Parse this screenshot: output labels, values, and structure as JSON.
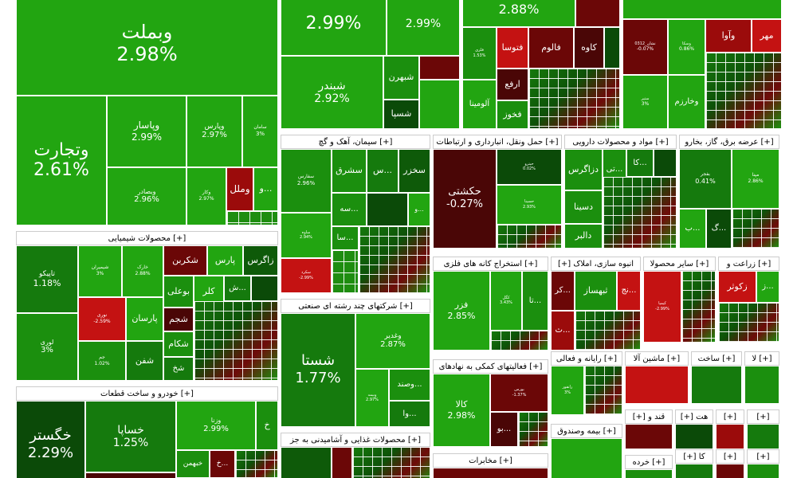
{
  "colors": {
    "green_light": "#22a511",
    "green_mid": "#1b8f0e",
    "green_dark": "#0b4a08",
    "red_bright": "#c41212",
    "red_dark": "#6b0707"
  },
  "expand_icon": "[+]",
  "sectors": [
    {
      "key": "chem",
      "label": "محصولات شیمیایی"
    },
    {
      "key": "auto",
      "label": "خودرو و ساخت قطعات"
    },
    {
      "key": "cement",
      "label": "سیمان، آهک و گچ"
    },
    {
      "key": "multi",
      "label": "شرکتهای چند رشته ای صنعتی"
    },
    {
      "key": "food",
      "label": "محصولات غذایی و آشامیدنی به جز"
    },
    {
      "key": "transport",
      "label": "حمل ونقل، انبارداری و ارتباطات"
    },
    {
      "key": "pharma",
      "label": "مواد و محصولات دارویی"
    },
    {
      "key": "power",
      "label": "عرضه برق، گاز، بخارو"
    },
    {
      "key": "mining",
      "label": "استخراج کانه های فلزی"
    },
    {
      "key": "finance_aux",
      "label": "فعالیتهای کمکی به نهادهای"
    },
    {
      "key": "telecom",
      "label": "مخابرات"
    },
    {
      "key": "construction",
      "label": "انبوه سازی، املاک"
    },
    {
      "key": "other_products",
      "label": "سایر محصولا"
    },
    {
      "key": "agri",
      "label": "زراعت و"
    },
    {
      "key": "computer",
      "label": "رایانه و فعالی"
    },
    {
      "key": "machinery",
      "label": "ماشین آلا"
    },
    {
      "key": "build",
      "label": "ساخت"
    },
    {
      "key": "misc1",
      "label": "لا"
    },
    {
      "key": "sugar",
      "label": "قند و"
    },
    {
      "key": "hotel",
      "label": "هت"
    },
    {
      "key": "insurance",
      "label": "بیمه وصندوق"
    },
    {
      "key": "retail",
      "label": "خرده"
    },
    {
      "key": "ka",
      "label": "کا"
    }
  ],
  "tiles": {
    "vbamellat": {
      "name": "وبملت",
      "pct": "2.98%"
    },
    "vtejarat": {
      "name": "وتجارت",
      "pct": "2.61%"
    },
    "vpasar": {
      "name": "وپاسار",
      "pct": "2.99%"
    },
    "vpars": {
      "name": "وپارس",
      "pct": "2.97%"
    },
    "vsina": {
      "name": "سامان",
      "pct": "3%"
    },
    "vbsader": {
      "name": "وبصادر",
      "pct": "2.96%"
    },
    "vmellal": {
      "name": "وملل",
      "pct": ""
    },
    "vkarafarin": {
      "name": "وکار",
      "pct": "2.97%"
    },
    "vsmall": {
      "name": "و...",
      "pct": ""
    },
    "top_mid": {
      "name": "",
      "pct": "2.99%"
    },
    "top_mid2": {
      "name": "",
      "pct": "2.99%"
    },
    "shabandar": {
      "name": "شبندر",
      "pct": "2.92%"
    },
    "shebahren": {
      "name": "شبهرن",
      "pct": ""
    },
    "shespa": {
      "name": "شسپا",
      "pct": ""
    },
    "fooladpct": {
      "name": "",
      "pct": "2.88%"
    },
    "foolad_small": {
      "name": "فلزی",
      "pct": "1.53%"
    },
    "ftavsa": {
      "name": "فتوسا",
      "pct": ""
    },
    "falvom": {
      "name": "فالوم",
      "pct": ""
    },
    "kaveh": {
      "name": "کاوه",
      "pct": ""
    },
    "arfe": {
      "name": "ارفع",
      "pct": ""
    },
    "aluminia": {
      "name": "آلومینا",
      "pct": ""
    },
    "fakhooz": {
      "name": "فخوز",
      "pct": ""
    },
    "vaava": {
      "name": "وآوا",
      "pct": ""
    },
    "mehr": {
      "name": "مهر",
      "pct": ""
    },
    "dark_small": {
      "name": "نشان_0312",
      "pct": "-0.07%"
    },
    "vsmall2": {
      "name": "وسکا",
      "pct": "0.86%"
    },
    "sdir": {
      "name": "ستیر",
      "pct": "3%"
    },
    "vkharazm": {
      "name": "وخارزم",
      "pct": ""
    },
    "taipiko": {
      "name": "تاپیکو",
      "pct": "1.18%"
    },
    "lori": {
      "name": "لوری",
      "pct": "3%"
    },
    "shimiran": {
      "name": "شیمیران",
      "pct": "3%"
    },
    "khark": {
      "name": "خارک",
      "pct": "2.88%"
    },
    "shekarbon": {
      "name": "شکربن",
      "pct": ""
    },
    "pars": {
      "name": "پارس",
      "pct": ""
    },
    "zagros": {
      "name": "زاگرس",
      "pct": ""
    },
    "boali": {
      "name": "بوعلی",
      "pct": ""
    },
    "kelar": {
      "name": "کلر",
      "pct": ""
    },
    "sh_": {
      "name": "ش...",
      "pct": ""
    },
    "parsan": {
      "name": "پارسان",
      "pct": ""
    },
    "shajam": {
      "name": "شجم",
      "pct": ""
    },
    "shkam": {
      "name": "شکام",
      "pct": ""
    },
    "shafan": {
      "name": "شفن",
      "pct": ""
    },
    "shkh": {
      "name": "شخ",
      "pct": ""
    },
    "noori": {
      "name": "نوری",
      "pct": "-2.59%"
    },
    "jam": {
      "name": "جم",
      "pct": "1.02%"
    },
    "khgostar": {
      "name": "خگستر",
      "pct": "2.29%"
    },
    "khsapa": {
      "name": "خساپا",
      "pct": "1.25%"
    },
    "vozna": {
      "name": "وزنا",
      "pct": "2.99%"
    },
    "khbahman": {
      "name": "خبهمن",
      "pct": ""
    },
    "kh_": {
      "name": "خ...",
      "pct": ""
    },
    "kh2": {
      "name": "خ",
      "pct": ""
    },
    "sfars": {
      "name": "سفارس",
      "pct": "2.96%"
    },
    "sshargh": {
      "name": "سشرق",
      "pct": ""
    },
    "s_": {
      "name": "س...",
      "pct": ""
    },
    "skhazar": {
      "name": "سخزر",
      "pct": ""
    },
    "sse": {
      "name": "سه...",
      "pct": ""
    },
    "sa": {
      "name": "سا...",
      "pct": ""
    },
    "s_small": {
      "name": "ساوه",
      "pct": "2.94%"
    },
    "s_red": {
      "name": "سکرد",
      "pct": "-2.99%"
    },
    "shasta": {
      "name": "شستا",
      "pct": "1.77%"
    },
    "vghadir": {
      "name": "وغدیر",
      "pct": "2.87%"
    },
    "vsand": {
      "name": "وصند...",
      "pct": ""
    },
    "voa": {
      "name": "وا...",
      "pct": ""
    },
    "vbima": {
      "name": "وبیمه",
      "pct": "2.97%"
    },
    "hakashti": {
      "name": "حکشتی",
      "pct": "-0.27%"
    },
    "hpet": {
      "name": "حپترو",
      "pct": "0.02%"
    },
    "hsina": {
      "name": "حسینا",
      "pct": "2.93%"
    },
    "dzagros": {
      "name": "دزاگرس",
      "pct": ""
    },
    "dt": {
      "name": "تی...",
      "pct": ""
    },
    "dka": {
      "name": "کا...",
      "pct": ""
    },
    "dsina": {
      "name": "دسینا",
      "pct": ""
    },
    "dalber": {
      "name": "دالبر",
      "pct": ""
    },
    "bfajr": {
      "name": "بفجر",
      "pct": "0.41%"
    },
    "bmapna": {
      "name": "مپنا",
      "pct": "2.86%"
    },
    "bg": {
      "name": "گ...",
      "pct": ""
    },
    "bb": {
      "name": "ب...",
      "pct": ""
    },
    "fzar": {
      "name": "فزر",
      "pct": "2.85%"
    },
    "kgol": {
      "name": "کگل",
      "pct": "3.43%"
    },
    "ta": {
      "name": "تا...",
      "pct": ""
    },
    "kala": {
      "name": "کالا",
      "pct": "2.98%"
    },
    "bourse": {
      "name": "بورس",
      "pct": "-1.37%"
    },
    "bo": {
      "name": "بو...",
      "pct": ""
    },
    "kr": {
      "name": "کر...",
      "pct": ""
    },
    "thbahaz": {
      "name": "ثبهساز",
      "pct": ""
    },
    "th_": {
      "name": "ث...",
      "pct": ""
    },
    "nj": {
      "name": "نج...",
      "pct": ""
    },
    "kimia": {
      "name": "کیمیا",
      "pct": "-2.99%"
    },
    "zkoser": {
      "name": "زکوثر",
      "pct": ""
    },
    "z_": {
      "name": "ز...",
      "pct": ""
    },
    "comp": {
      "name": "رانفور",
      "pct": "3%"
    }
  }
}
